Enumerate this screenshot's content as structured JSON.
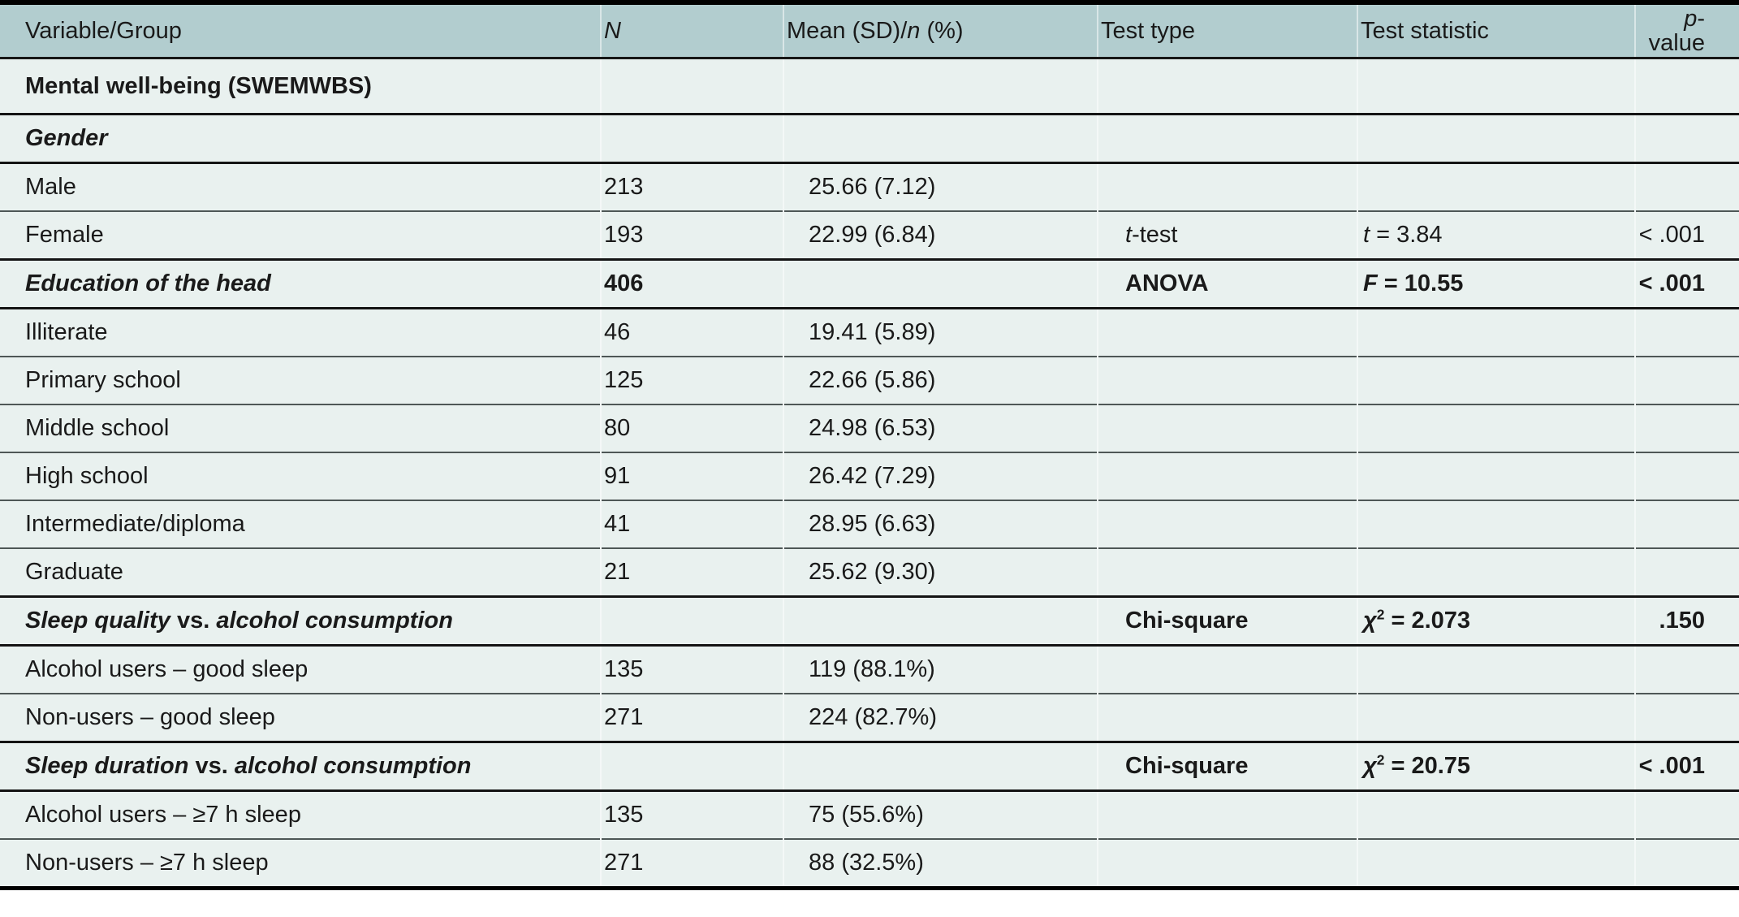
{
  "colors": {
    "header_background": "#b2cdcf",
    "row_background": "#e9f1ef",
    "rule_dark": "#141414",
    "rule_light": "#4e5756",
    "text": "#1a1a1a"
  },
  "header": {
    "cells": [
      [
        {
          "t": "Variable/Group"
        }
      ],
      [
        {
          "t": "N",
          "i": true
        }
      ],
      [
        {
          "t": "Mean (SD)/"
        },
        {
          "t": "n",
          "i": true
        },
        {
          "t": " (%)"
        }
      ],
      [
        {
          "t": "Test type"
        }
      ],
      [
        {
          "t": "Test statistic"
        }
      ],
      [
        {
          "t": "p",
          "i": true
        },
        {
          "t": "-value"
        }
      ]
    ]
  },
  "rows": [
    {
      "key": "mental-wellbeing",
      "cells": [
        [
          {
            "t": "Mental well-being (SWEMWBS)"
          }
        ],
        [],
        [],
        [],
        [],
        []
      ]
    },
    {
      "key": "gender",
      "cells": [
        [
          {
            "t": "Gender",
            "i": true
          }
        ],
        [],
        [],
        [],
        [],
        []
      ]
    },
    {
      "key": "male",
      "cells": [
        [
          {
            "t": "Male"
          }
        ],
        [
          {
            "t": "213"
          }
        ],
        [
          {
            "t": "25.66 (7.12)"
          }
        ],
        [],
        [],
        []
      ]
    },
    {
      "key": "female",
      "cells": [
        [
          {
            "t": "Female"
          }
        ],
        [
          {
            "t": "193"
          }
        ],
        [
          {
            "t": "22.99 (6.84)"
          }
        ],
        [
          {
            "t": "t",
            "i": true
          },
          {
            "t": "-test"
          }
        ],
        [
          {
            "t": "t",
            "i": true
          },
          {
            "t": " = 3.84"
          }
        ],
        [
          {
            "t": "< .001"
          }
        ]
      ]
    },
    {
      "key": "education",
      "cells": [
        [
          {
            "t": "Education of the head",
            "i": true
          }
        ],
        [
          {
            "t": "406"
          }
        ],
        [],
        [
          {
            "t": "ANOVA"
          }
        ],
        [
          {
            "t": "F",
            "i": true
          },
          {
            "t": " = 10.55"
          }
        ],
        [
          {
            "t": "< .001"
          }
        ]
      ]
    },
    {
      "key": "illiterate",
      "cells": [
        [
          {
            "t": "Illiterate"
          }
        ],
        [
          {
            "t": "46"
          }
        ],
        [
          {
            "t": "19.41 (5.89)"
          }
        ],
        [],
        [],
        []
      ]
    },
    {
      "key": "primary-school",
      "cells": [
        [
          {
            "t": "Primary school"
          }
        ],
        [
          {
            "t": "125"
          }
        ],
        [
          {
            "t": "22.66 (5.86)"
          }
        ],
        [],
        [],
        []
      ]
    },
    {
      "key": "middle-school",
      "cells": [
        [
          {
            "t": "Middle school"
          }
        ],
        [
          {
            "t": "80"
          }
        ],
        [
          {
            "t": "24.98 (6.53)"
          }
        ],
        [],
        [],
        []
      ]
    },
    {
      "key": "high-school",
      "cells": [
        [
          {
            "t": "High school"
          }
        ],
        [
          {
            "t": "91"
          }
        ],
        [
          {
            "t": "26.42 (7.29)"
          }
        ],
        [],
        [],
        []
      ]
    },
    {
      "key": "intermediate-diploma",
      "cells": [
        [
          {
            "t": "Intermediate/diploma"
          }
        ],
        [
          {
            "t": "41"
          }
        ],
        [
          {
            "t": "28.95 (6.63)"
          }
        ],
        [],
        [],
        []
      ]
    },
    {
      "key": "graduate",
      "cells": [
        [
          {
            "t": "Graduate"
          }
        ],
        [
          {
            "t": "21"
          }
        ],
        [
          {
            "t": "25.62 (9.30)"
          }
        ],
        [],
        [],
        []
      ]
    },
    {
      "key": "sleep-quality-vs-alcohol",
      "cells": [
        [
          {
            "t": "Sleep quality",
            "i": true
          },
          {
            "t": " vs. "
          },
          {
            "t": "alcohol consumption",
            "i": true
          }
        ],
        [],
        [],
        [
          {
            "t": "Chi-square"
          }
        ],
        [
          {
            "t": "χ",
            "i": true
          },
          {
            "t": "2",
            "sup": true
          },
          {
            "t": " = 2.073"
          }
        ],
        [
          {
            "t": ".150"
          }
        ]
      ]
    },
    {
      "key": "alcohol-users-good-sleep",
      "cells": [
        [
          {
            "t": "Alcohol users – good sleep"
          }
        ],
        [
          {
            "t": "135"
          }
        ],
        [
          {
            "t": "119 (88.1%)"
          }
        ],
        [],
        [],
        []
      ]
    },
    {
      "key": "non-users-good-sleep",
      "cells": [
        [
          {
            "t": "Non-users – good sleep"
          }
        ],
        [
          {
            "t": "271"
          }
        ],
        [
          {
            "t": "224 (82.7%)"
          }
        ],
        [],
        [],
        []
      ]
    },
    {
      "key": "sleep-duration-vs-alcohol",
      "cells": [
        [
          {
            "t": "Sleep duration",
            "i": true
          },
          {
            "t": " vs. "
          },
          {
            "t": "alcohol consumption",
            "i": true
          }
        ],
        [],
        [],
        [
          {
            "t": "Chi-square"
          }
        ],
        [
          {
            "t": "χ",
            "i": true
          },
          {
            "t": "2",
            "sup": true
          },
          {
            "t": " = 20.75"
          }
        ],
        [
          {
            "t": "< .001"
          }
        ]
      ]
    },
    {
      "key": "alcohol-users-7h-sleep",
      "cells": [
        [
          {
            "t": "Alcohol users – ≥7 h sleep"
          }
        ],
        [
          {
            "t": "135"
          }
        ],
        [
          {
            "t": "75 (55.6%)"
          }
        ],
        [],
        [],
        []
      ]
    },
    {
      "key": "non-users-7h-sleep",
      "cells": [
        [
          {
            "t": "Non-users – ≥7 h sleep"
          }
        ],
        [
          {
            "t": "271"
          }
        ],
        [
          {
            "t": "88 (32.5%)"
          }
        ],
        [],
        [],
        []
      ]
    }
  ]
}
